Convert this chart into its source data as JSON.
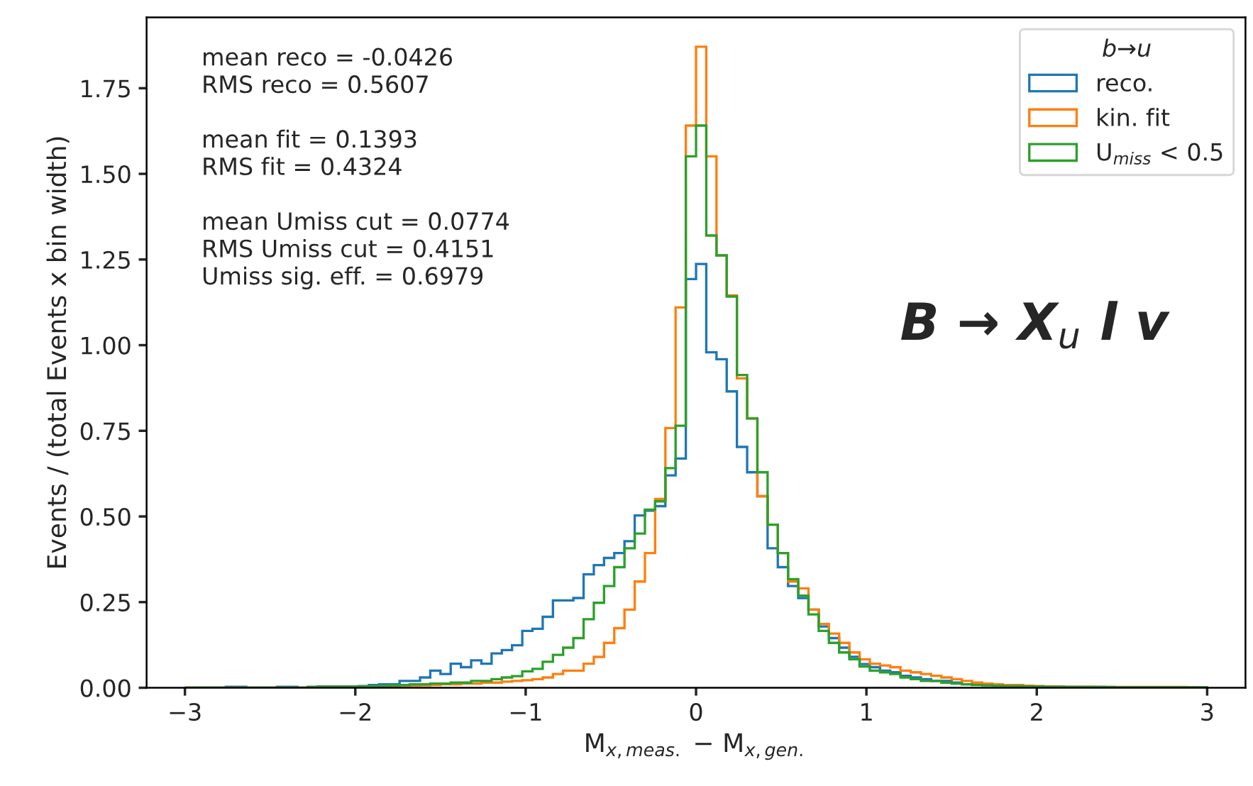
{
  "chart_data": {
    "type": "histogram",
    "xlabel": "M$_{x,meas.}$ − M$_{x,gen.}$",
    "ylabel": "Events / (total Events x bin width)",
    "legend_title": "b→u",
    "annotations": [
      "mean reco = -0.0426\nRMS reco = 0.5607\n\nmean fit = 0.1393\nRMS fit = 0.4324\n\nmean Umiss cut = 0.0774\nRMS Umiss cut = 0.4151\nUmiss sig. eff. = 0.6979",
      "B → X$_{u}$ l v"
    ],
    "bins": [
      -3.0,
      -2.94,
      -2.88,
      -2.82,
      -2.76,
      -2.7,
      -2.64,
      -2.58,
      -2.52,
      -2.46,
      -2.4,
      -2.34,
      -2.28,
      -2.22,
      -2.16,
      -2.1,
      -2.04,
      -1.98,
      -1.92,
      -1.86,
      -1.8,
      -1.74,
      -1.68,
      -1.62,
      -1.56,
      -1.5,
      -1.44,
      -1.38,
      -1.32,
      -1.26,
      -1.2,
      -1.14,
      -1.08,
      -1.02,
      -0.96,
      -0.9,
      -0.84,
      -0.78,
      -0.72,
      -0.66,
      -0.6,
      -0.54,
      -0.48,
      -0.42,
      -0.36,
      -0.3,
      -0.24,
      -0.18,
      -0.12,
      -0.06,
      0,
      0.06,
      0.12,
      0.18,
      0.24,
      0.3,
      0.36,
      0.42,
      0.48,
      0.54,
      0.6,
      0.66,
      0.72,
      0.78,
      0.84,
      0.9,
      0.96,
      1.02,
      1.08,
      1.14,
      1.2,
      1.26,
      1.32,
      1.38,
      1.44,
      1.5,
      1.56,
      1.62,
      1.68,
      1.74,
      1.8,
      1.86,
      1.92,
      1.98,
      2.04,
      2.1,
      2.16,
      2.22,
      2.28,
      2.34,
      2.4,
      2.46,
      2.52,
      2.58,
      2.64,
      2.7,
      2.76,
      2.82,
      2.88,
      2.94,
      3.0
    ],
    "series": [
      {
        "name": "reco.",
        "color": "#1f77b4",
        "values": [
          0,
          0,
          0,
          0,
          0.003,
          0.003,
          0,
          0,
          0,
          0.003,
          0.003,
          0,
          0,
          0.004,
          0.004,
          0.004,
          0.004,
          0.005,
          0.008,
          0.01,
          0.01,
          0.02,
          0.02,
          0.03,
          0.05,
          0.04,
          0.07,
          0.06,
          0.08,
          0.07,
          0.1,
          0.11,
          0.124,
          0.166,
          0.172,
          0.207,
          0.255,
          0.255,
          0.262,
          0.331,
          0.358,
          0.379,
          0.393,
          0.428,
          0.503,
          0.517,
          0.53,
          0.62,
          0.669,
          1.193,
          1.237,
          0.979,
          0.959,
          0.865,
          0.703,
          0.629,
          0.559,
          0.407,
          0.352,
          0.297,
          0.262,
          0.228,
          0.179,
          0.145,
          0.117,
          0.09,
          0.069,
          0.06,
          0.05,
          0.045,
          0.035,
          0.03,
          0.025,
          0.02,
          0.02,
          0.015,
          0.01,
          0.01,
          0.008,
          0.007,
          0.006,
          0.005,
          0.005,
          0.004,
          0.003,
          0.002,
          0.002,
          0.002,
          0.002,
          0.002,
          0.001,
          0.001,
          0.001,
          0.001,
          0.001,
          0.001,
          0.001,
          0.001,
          0.001,
          0
        ]
      },
      {
        "name": "kin. fit",
        "color": "#ff7f0e",
        "values": [
          0,
          0,
          0,
          0,
          0,
          0,
          0,
          0,
          0,
          0,
          0,
          0,
          0,
          0.002,
          0.002,
          0.002,
          0.002,
          0.002,
          0.003,
          0.003,
          0.004,
          0.005,
          0.006,
          0.007,
          0.008,
          0.01,
          0.01,
          0.012,
          0.012,
          0.015,
          0.015,
          0.018,
          0.02,
          0.022,
          0.025,
          0.03,
          0.04,
          0.05,
          0.05,
          0.07,
          0.09,
          0.131,
          0.174,
          0.228,
          0.31,
          0.393,
          0.551,
          0.758,
          1.11,
          1.641,
          1.871,
          1.551,
          1.262,
          1.145,
          0.903,
          0.786,
          0.559,
          0.476,
          0.393,
          0.31,
          0.29,
          0.228,
          0.186,
          0.158,
          0.131,
          0.103,
          0.083,
          0.07,
          0.065,
          0.06,
          0.05,
          0.045,
          0.04,
          0.035,
          0.03,
          0.025,
          0.02,
          0.015,
          0.012,
          0.01,
          0.008,
          0.008,
          0.006,
          0.005,
          0.004,
          0.004,
          0.003,
          0.003,
          0.003,
          0.002,
          0.002,
          0.002,
          0.002,
          0.002,
          0.002,
          0.002,
          0.002,
          0.002,
          0.001,
          0.001
        ]
      },
      {
        "name": "U$_{miss}$ < 0.5",
        "color": "#2ca02c",
        "values": [
          0,
          0,
          0,
          0,
          0,
          0,
          0,
          0,
          0,
          0,
          0,
          0,
          0.003,
          0.003,
          0.003,
          0.003,
          0.003,
          0.004,
          0.005,
          0.006,
          0.007,
          0.008,
          0.01,
          0.01,
          0.012,
          0.012,
          0.015,
          0.015,
          0.02,
          0.02,
          0.025,
          0.03,
          0.034,
          0.048,
          0.055,
          0.076,
          0.096,
          0.117,
          0.145,
          0.2,
          0.248,
          0.297,
          0.352,
          0.407,
          0.45,
          0.52,
          0.544,
          0.641,
          0.765,
          1.551,
          1.641,
          1.32,
          1.262,
          1.142,
          0.913,
          0.786,
          0.629,
          0.476,
          0.393,
          0.317,
          0.269,
          0.214,
          0.166,
          0.131,
          0.103,
          0.083,
          0.062,
          0.05,
          0.045,
          0.04,
          0.03,
          0.025,
          0.02,
          0.02,
          0.015,
          0.012,
          0.01,
          0.008,
          0.007,
          0.006,
          0.005,
          0.005,
          0.004,
          0.004,
          0.003,
          0.003,
          0.002,
          0.002,
          0.002,
          0.002,
          0.002,
          0.001,
          0.001,
          0.001,
          0.001,
          0.001,
          0.001,
          0.001,
          0.001,
          0.001
        ]
      }
    ],
    "xlim": [
      -3.225,
      3.225
    ],
    "xticks": [
      {
        "value": -3,
        "label": "−3"
      },
      {
        "value": -2,
        "label": "−2"
      },
      {
        "value": -1,
        "label": "−1"
      },
      0,
      1,
      2,
      3
    ],
    "ylim": [
      0,
      1.957
    ],
    "yticks": [
      {
        "value": 0,
        "label": "0.00"
      },
      {
        "value": 0.25,
        "label": "0.25"
      },
      {
        "value": 0.5,
        "label": "0.50"
      },
      {
        "value": 0.75,
        "label": "0.75"
      },
      {
        "value": 1.0,
        "label": "1.00"
      },
      {
        "value": 1.25,
        "label": "1.25"
      },
      {
        "value": 1.5,
        "label": "1.50"
      },
      {
        "value": 1.75,
        "label": "1.75"
      }
    ],
    "legend": "top right",
    "grid": false
  }
}
